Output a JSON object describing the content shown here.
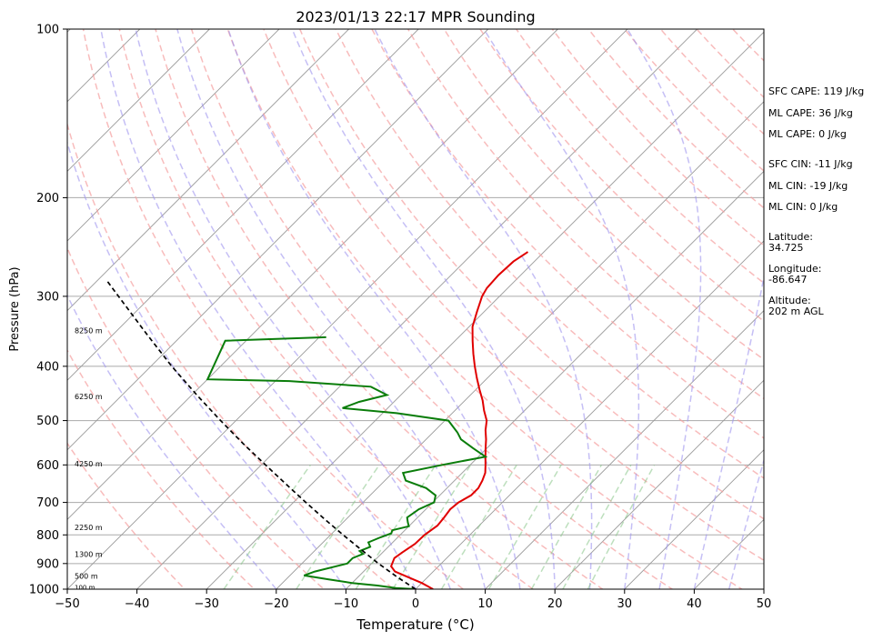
{
  "chart_data": {
    "type": "line",
    "subtype": "skew-t log-p sounding",
    "title": "2023/01/13 22:17 MPR Sounding",
    "xlabel": "Temperature (°C)",
    "ylabel": "Pressure (hPa)",
    "xlim": [
      -50,
      50
    ],
    "ylim": [
      1000,
      100
    ],
    "y_scale": "log",
    "x_ticks": [
      -50,
      -40,
      -30,
      -20,
      -10,
      0,
      10,
      20,
      30,
      40,
      50
    ],
    "x_tick_labels": [
      "−50",
      "−40",
      "−30",
      "−20",
      "−10",
      "0",
      "10",
      "20",
      "30",
      "40",
      "50"
    ],
    "y_ticks": [
      1000,
      900,
      800,
      700,
      600,
      500,
      400,
      300,
      200,
      100
    ],
    "y_tick_labels": [
      "1000",
      "900",
      "800",
      "700",
      "600",
      "500",
      "400",
      "300",
      "200",
      "100"
    ],
    "grid": true,
    "height_labels": [
      {
        "text": "100 m",
        "p": 990
      },
      {
        "text": "500 m",
        "p": 947
      },
      {
        "text": "1300 m",
        "p": 866
      },
      {
        "text": "2250 m",
        "p": 775
      },
      {
        "text": "4250 m",
        "p": 597
      },
      {
        "text": "6250 m",
        "p": 453
      },
      {
        "text": "8250 m",
        "p": 345
      }
    ],
    "series": [
      {
        "role": "temperature",
        "color": "#e00000",
        "points": [
          [
            1000,
            2.5
          ],
          [
            990,
            1.5
          ],
          [
            975,
            0
          ],
          [
            950,
            -3
          ],
          [
            930,
            -5.5
          ],
          [
            910,
            -6.8
          ],
          [
            880,
            -7.5
          ],
          [
            860,
            -7.2
          ],
          [
            830,
            -6.6
          ],
          [
            800,
            -6.5
          ],
          [
            770,
            -6
          ],
          [
            745,
            -6.2
          ],
          [
            720,
            -6.5
          ],
          [
            700,
            -6.3
          ],
          [
            680,
            -5.5
          ],
          [
            660,
            -5.5
          ],
          [
            640,
            -6
          ],
          [
            620,
            -6.7
          ],
          [
            600,
            -7.8
          ],
          [
            580,
            -9
          ],
          [
            560,
            -10.2
          ],
          [
            540,
            -11.4
          ],
          [
            520,
            -12.8
          ],
          [
            500,
            -14
          ],
          [
            480,
            -15.8
          ],
          [
            460,
            -17.5
          ],
          [
            440,
            -19.5
          ],
          [
            420,
            -21.5
          ],
          [
            400,
            -23.5
          ],
          [
            380,
            -25.5
          ],
          [
            360,
            -27.5
          ],
          [
            340,
            -29.5
          ],
          [
            320,
            -31
          ],
          [
            300,
            -32.5
          ],
          [
            290,
            -33
          ],
          [
            275,
            -33.2
          ],
          [
            260,
            -33
          ],
          [
            250,
            -32.3
          ]
        ]
      },
      {
        "role": "dewpoint",
        "color": "#0a7d0a",
        "points": [
          [
            1000,
            0
          ],
          [
            995,
            -3
          ],
          [
            985,
            -6
          ],
          [
            975,
            -10
          ],
          [
            960,
            -14
          ],
          [
            945,
            -18
          ],
          [
            930,
            -17
          ],
          [
            900,
            -13.5
          ],
          [
            880,
            -13.5
          ],
          [
            865,
            -12.6
          ],
          [
            855,
            -13.5
          ],
          [
            840,
            -12.6
          ],
          [
            825,
            -13.5
          ],
          [
            808,
            -12.5
          ],
          [
            795,
            -11.5
          ],
          [
            785,
            -11.8
          ],
          [
            772,
            -10
          ],
          [
            760,
            -10.7
          ],
          [
            745,
            -11.5
          ],
          [
            720,
            -11
          ],
          [
            700,
            -9.8
          ],
          [
            680,
            -10.6
          ],
          [
            660,
            -13
          ],
          [
            640,
            -17
          ],
          [
            620,
            -18.5
          ],
          [
            600,
            -14
          ],
          [
            580,
            -9
          ],
          [
            560,
            -12
          ],
          [
            540,
            -15
          ],
          [
            525,
            -16.5
          ],
          [
            500,
            -19.5
          ],
          [
            485,
            -28
          ],
          [
            475,
            -36.5
          ],
          [
            463,
            -35
          ],
          [
            450,
            -32
          ],
          [
            435,
            -35.5
          ],
          [
            425,
            -48
          ],
          [
            422,
            -60
          ],
          [
            360,
            -63
          ],
          [
            355,
            -49
          ]
        ]
      },
      {
        "role": "parcel",
        "color": "#000000",
        "points": [
          [
            1000,
            0
          ],
          [
            950,
            -4.5
          ],
          [
            900,
            -9
          ],
          [
            850,
            -13.5
          ],
          [
            800,
            -18.2
          ],
          [
            750,
            -23.1
          ],
          [
            700,
            -28.2
          ],
          [
            650,
            -33.6
          ],
          [
            600,
            -39.4
          ],
          [
            550,
            -45.6
          ],
          [
            500,
            -52.2
          ],
          [
            450,
            -59.3
          ],
          [
            400,
            -67
          ],
          [
            350,
            -75.3
          ],
          [
            300,
            -84.7
          ],
          [
            280,
            -88.9
          ]
        ]
      }
    ],
    "reference_lines": {
      "dry_adiabats_theta_K": [
        240,
        250,
        260,
        270,
        280,
        290,
        300,
        310,
        320,
        330,
        340,
        350,
        360,
        370,
        380,
        390,
        400,
        410,
        420,
        430,
        440,
        450,
        460,
        470,
        480
      ],
      "moist_adiabats_start_C": [
        -20,
        -10,
        0,
        5,
        10,
        15,
        20,
        25,
        30,
        35,
        40,
        45,
        50
      ],
      "mixing_ratio_lines_gkg": [
        0.4,
        1,
        2,
        3,
        5,
        8,
        12,
        16,
        20
      ],
      "mixing_ratio_top_hpa": 600,
      "colors": {
        "dry": "#f5a0a0",
        "moist": "#9e95ee",
        "mixing": "#86c586",
        "isotherm": "#999999",
        "isobar": "#aaaaaa"
      }
    }
  },
  "info_panel": [
    "SFC CAPE: 119 J/kg",
    "ML CAPE: 36 J/kg",
    "ML CAPE: 0 J/kg",
    "SFC CIN: -11 J/kg",
    "ML CIN: -19 J/kg",
    "ML CIN: 0 J/kg",
    "Latitude:",
    "34.725",
    "Longitude:",
    "-86.647",
    "Altitude:",
    "202 m AGL"
  ]
}
